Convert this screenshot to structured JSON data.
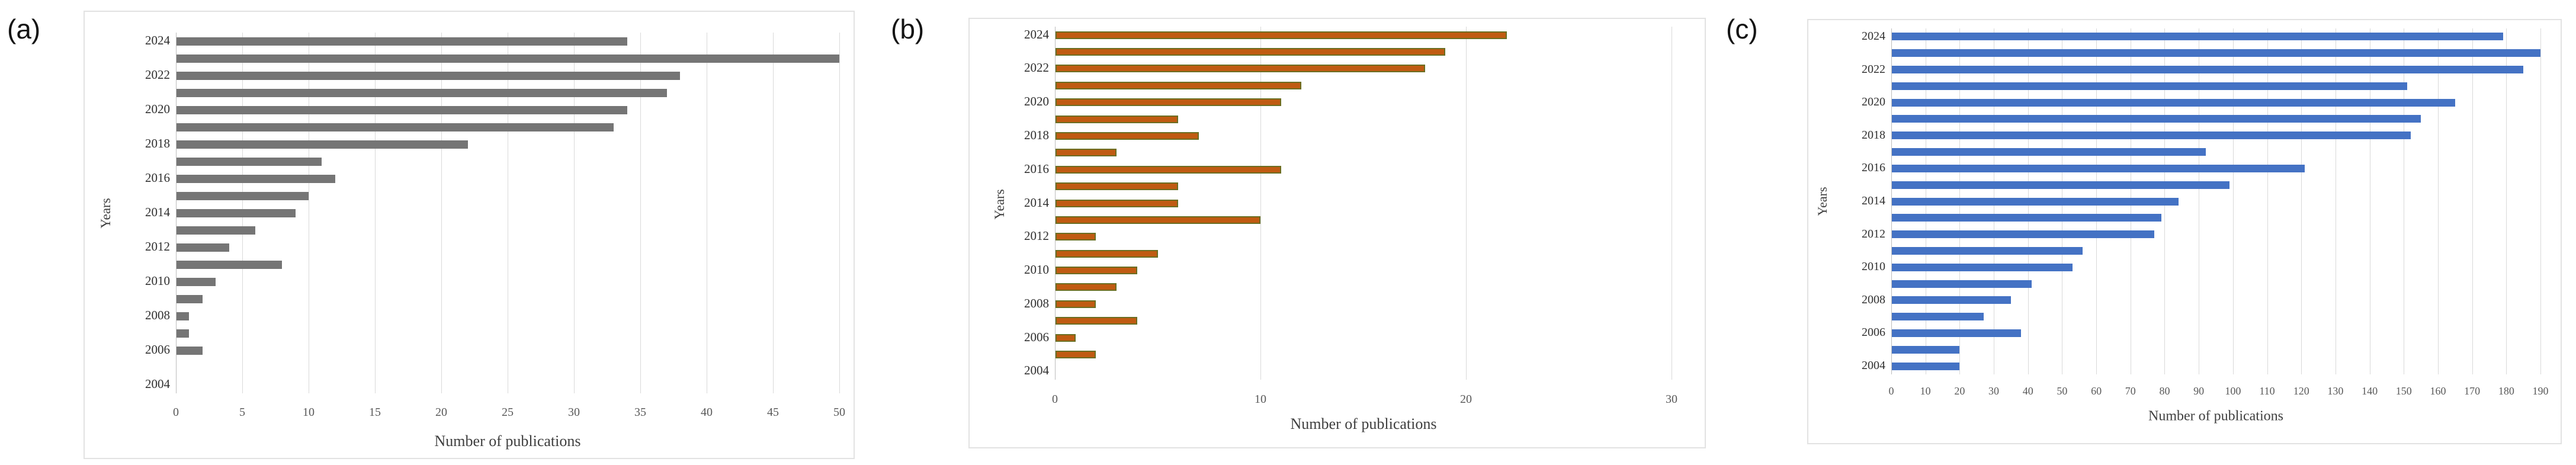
{
  "colors": {
    "page_background": "#ffffff",
    "panel_border": "#e2e2e2",
    "gridline": "#d9d9d9",
    "axis_line": "#bdbdbd",
    "tick_label": "#595959",
    "year_label": "#303030",
    "axis_title": "#3f3f3f",
    "panel_label": "#141414",
    "bar_gray": "#757575",
    "bar_orange": "#c05b12",
    "bar_orange_border": "#6b6e22",
    "bar_blue": "#4472c4"
  },
  "chart_data": [
    {
      "type": "bar",
      "orientation": "horizontal",
      "panel_label": "(a)",
      "title": "",
      "xlabel": "Number of publications",
      "ylabel": "Years",
      "categories": [
        "2024",
        "2023",
        "2022",
        "2021",
        "2020",
        "2019",
        "2018",
        "2017",
        "2016",
        "2015",
        "2014",
        "2013",
        "2012",
        "2011",
        "2010",
        "2009",
        "2008",
        "2007",
        "2006",
        "2005",
        "2004"
      ],
      "values": [
        34,
        50,
        38,
        37,
        34,
        33,
        22,
        11,
        12,
        10,
        9,
        6,
        4,
        8,
        3,
        2,
        1,
        1,
        2,
        0,
        0
      ],
      "xlim": [
        0,
        50
      ],
      "x_ticks": [
        0,
        5,
        10,
        15,
        20,
        25,
        30,
        35,
        40,
        45,
        50
      ],
      "visible_year_labels": [
        "2024",
        "2022",
        "2020",
        "2018",
        "2016",
        "2014",
        "2012",
        "2010",
        "2008",
        "2006",
        "2004"
      ],
      "grid": true,
      "legend": false,
      "bar_color": "#757575",
      "bar_border_color": null
    },
    {
      "type": "bar",
      "orientation": "horizontal",
      "panel_label": "(b)",
      "title": "",
      "xlabel": "Number of publications",
      "ylabel": "Years",
      "categories": [
        "2024",
        "2023",
        "2022",
        "2021",
        "2020",
        "2019",
        "2018",
        "2017",
        "2016",
        "2015",
        "2014",
        "2013",
        "2012",
        "2011",
        "2010",
        "2009",
        "2008",
        "2007",
        "2006",
        "2005",
        "2004"
      ],
      "values": [
        22,
        19,
        18,
        12,
        11,
        6,
        7,
        3,
        11,
        6,
        6,
        10,
        2,
        5,
        4,
        3,
        2,
        4,
        1,
        2,
        0
      ],
      "xlim": [
        0,
        30
      ],
      "x_ticks": [
        0,
        10,
        20,
        30
      ],
      "visible_year_labels": [
        "2024",
        "2022",
        "2020",
        "2018",
        "2016",
        "2014",
        "2012",
        "2010",
        "2008",
        "2006",
        "2004"
      ],
      "grid": true,
      "legend": false,
      "bar_color": "#c05b12",
      "bar_border_color": "#6b6e22"
    },
    {
      "type": "bar",
      "orientation": "horizontal",
      "panel_label": "(c)",
      "title": "",
      "xlabel": "Number of publications",
      "ylabel": "Years",
      "categories": [
        "2024",
        "2023",
        "2022",
        "2021",
        "2020",
        "2019",
        "2018",
        "2017",
        "2016",
        "2015",
        "2014",
        "2013",
        "2012",
        "2011",
        "2010",
        "2009",
        "2008",
        "2007",
        "2006",
        "2005",
        "2004"
      ],
      "values": [
        179,
        190,
        185,
        151,
        165,
        155,
        152,
        92,
        121,
        99,
        84,
        79,
        77,
        56,
        53,
        41,
        35,
        27,
        38,
        20,
        20
      ],
      "xlim": [
        0,
        190
      ],
      "x_ticks": [
        0,
        10,
        20,
        30,
        40,
        50,
        60,
        70,
        80,
        90,
        100,
        110,
        120,
        130,
        140,
        150,
        160,
        170,
        180,
        190
      ],
      "visible_year_labels": [
        "2024",
        "2022",
        "2020",
        "2018",
        "2016",
        "2014",
        "2012",
        "2010",
        "2008",
        "2006",
        "2004"
      ],
      "grid": true,
      "legend": false,
      "bar_color": "#4472c4",
      "bar_border_color": null
    }
  ]
}
